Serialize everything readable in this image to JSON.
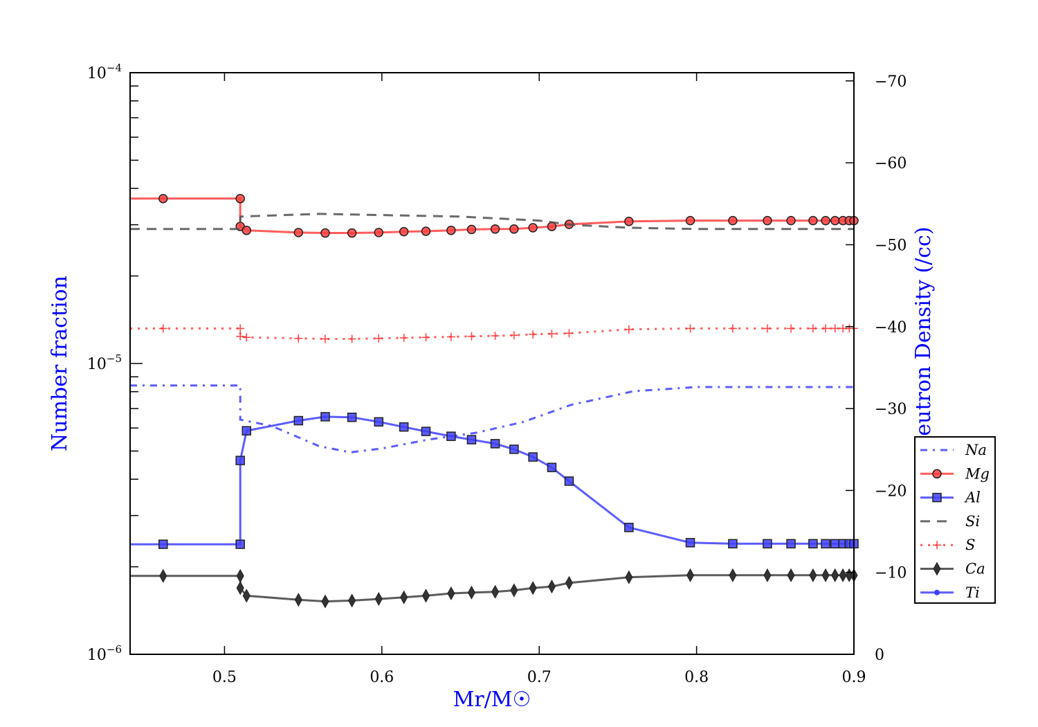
{
  "chart_data": {
    "type": "line",
    "xlabel": "Mr/M☉",
    "ylabel": "Number fraction",
    "y2label": "Log Neutron Density (/cc)",
    "xlim": [
      0.44,
      0.9
    ],
    "ylim": [
      1e-06,
      0.0001
    ],
    "yscale": "log",
    "y2lim": [
      0,
      -71
    ],
    "xticks": [
      0.5,
      0.6,
      0.7,
      0.8,
      0.9
    ],
    "xtick_labels": [
      "0.5",
      "0.6",
      "0.7",
      "0.8",
      "0.9"
    ],
    "yticks": [
      {
        "base": "10",
        "exp": "−4",
        "value": 0.0001
      },
      {
        "base": "10",
        "exp": "−5",
        "value": 1e-05
      },
      {
        "base": "10",
        "exp": "−6",
        "value": 1e-06
      }
    ],
    "y2ticks": [
      -70,
      -60,
      -50,
      -40,
      -30,
      -20,
      -10,
      0
    ],
    "y2tick_labels": [
      "−70",
      "−60",
      "−50",
      "−40",
      "−30",
      "−20",
      "−10",
      "0"
    ],
    "legend_position": "right",
    "marker_x": [
      0.461,
      0.51,
      0.51,
      0.514,
      0.547,
      0.564,
      0.581,
      0.598,
      0.614,
      0.628,
      0.644,
      0.657,
      0.672,
      0.684,
      0.696,
      0.708,
      0.719,
      0.757,
      0.796,
      0.823,
      0.845,
      0.86,
      0.874,
      0.882,
      0.888,
      0.893,
      0.897,
      0.9
    ],
    "series": [
      {
        "name": "Na",
        "color": "#4040ff",
        "style": "dashdot",
        "marker": "none",
        "x": [
          0.44,
          0.51,
          0.51,
          0.53,
          0.56,
          0.58,
          0.6,
          0.63,
          0.66,
          0.69,
          0.72,
          0.76,
          0.8,
          0.9
        ],
        "y": [
          8.4e-06,
          8.4e-06,
          6.41e-06,
          6.1e-06,
          5.2e-06,
          4.95e-06,
          5.1e-06,
          5.48e-06,
          5.78e-06,
          6.3e-06,
          7.2e-06,
          8.03e-06,
          8.3e-06,
          8.3e-06
        ]
      },
      {
        "name": "Mg",
        "color": "#ff4040",
        "style": "solid",
        "marker": "circle",
        "y": [
          3.69e-05,
          3.69e-05,
          2.96e-05,
          2.87e-05,
          2.82e-05,
          2.81e-05,
          2.81e-05,
          2.82e-05,
          2.84e-05,
          2.85e-05,
          2.87e-05,
          2.89e-05,
          2.9e-05,
          2.9e-05,
          2.93e-05,
          2.96e-05,
          3.01e-05,
          3.08e-05,
          3.1e-05,
          3.1e-05,
          3.1e-05,
          3.1e-05,
          3.1e-05,
          3.1e-05,
          3.1e-05,
          3.1e-05,
          3.1e-05,
          3.1e-05
        ]
      },
      {
        "name": "Al",
        "color": "#4040ff",
        "style": "solid",
        "marker": "square",
        "y": [
          2.39e-06,
          2.39e-06,
          4.64e-06,
          5.87e-06,
          6.36e-06,
          6.56e-06,
          6.53e-06,
          6.3e-06,
          6.05e-06,
          5.84e-06,
          5.62e-06,
          5.47e-06,
          5.3e-06,
          5.07e-06,
          4.77e-06,
          4.39e-06,
          3.94e-06,
          2.73e-06,
          2.42e-06,
          2.4e-06,
          2.4e-06,
          2.4e-06,
          2.4e-06,
          2.4e-06,
          2.4e-06,
          2.4e-06,
          2.4e-06,
          2.4e-06
        ]
      },
      {
        "name": "Si",
        "color": "#505050",
        "style": "dashed",
        "marker": "none",
        "x": [
          0.44,
          0.51,
          0.51,
          0.56,
          0.65,
          0.7,
          0.72,
          0.757,
          0.8,
          0.9
        ],
        "y": [
          2.9e-05,
          2.9e-05,
          3.2e-05,
          3.27e-05,
          3.2e-05,
          3.1e-05,
          3e-05,
          2.93e-05,
          2.9e-05,
          2.9e-05
        ]
      },
      {
        "name": "S",
        "color": "#ff4040",
        "style": "dotted",
        "marker": "plus",
        "y": [
          1.32e-05,
          1.32e-05,
          1.24e-05,
          1.23e-05,
          1.22e-05,
          1.215e-05,
          1.215e-05,
          1.22e-05,
          1.225e-05,
          1.23e-05,
          1.235e-05,
          1.24e-05,
          1.245e-05,
          1.25e-05,
          1.26e-05,
          1.265e-05,
          1.27e-05,
          1.31e-05,
          1.32e-05,
          1.32e-05,
          1.32e-05,
          1.32e-05,
          1.32e-05,
          1.32e-05,
          1.32e-05,
          1.32e-05,
          1.32e-05,
          1.32e-05
        ]
      },
      {
        "name": "Ca",
        "color": "#404040",
        "style": "solid",
        "marker": "diamond",
        "y": [
          1.86e-06,
          1.86e-06,
          1.69e-06,
          1.59e-06,
          1.54e-06,
          1.52e-06,
          1.53e-06,
          1.55e-06,
          1.57e-06,
          1.59e-06,
          1.62e-06,
          1.63e-06,
          1.64e-06,
          1.66e-06,
          1.69e-06,
          1.71e-06,
          1.76e-06,
          1.84e-06,
          1.87e-06,
          1.87e-06,
          1.87e-06,
          1.87e-06,
          1.87e-06,
          1.87e-06,
          1.87e-06,
          1.87e-06,
          1.87e-06,
          1.87e-06
        ]
      },
      {
        "name": "Ti",
        "color": "#4040ff",
        "style": "solid",
        "marker": "dot",
        "y": []
      }
    ]
  }
}
